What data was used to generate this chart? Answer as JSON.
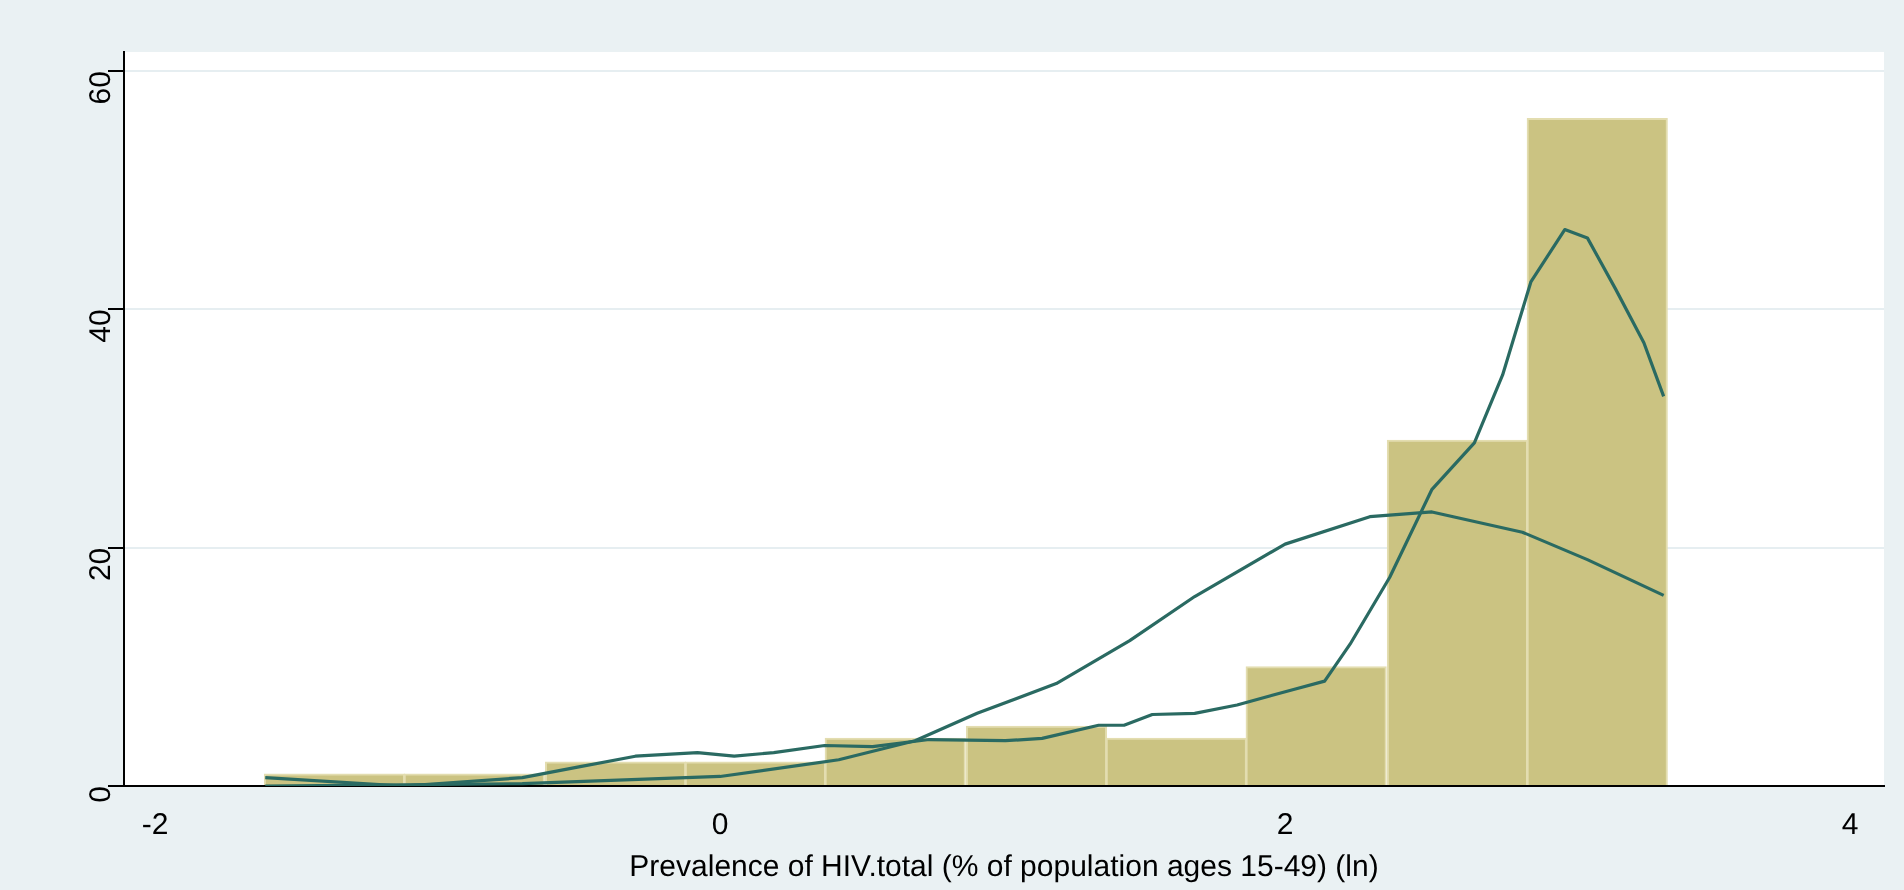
{
  "chart_data": {
    "type": "histogram",
    "xlabel": "Prevalence of HIV.total (% of population ages 15-49) (ln)",
    "bins": [
      -1.61,
      -1.12,
      -0.62,
      -0.12,
      0.37,
      0.87,
      1.37,
      1.86,
      2.36,
      2.86,
      3.35
    ],
    "values": [
      1,
      1,
      2,
      2,
      4,
      5,
      4,
      10,
      29,
      56
    ],
    "color": "#cbc382",
    "series": [
      {
        "type": "line",
        "color": "#2a6a62",
        "x": [
          -1.61,
          -1.12,
          -0.7,
          -0.5,
          -0.3,
          -0.08,
          0.05,
          0.19,
          0.37,
          0.54,
          0.74,
          1.01,
          1.14,
          1.34,
          1.43,
          1.53,
          1.68,
          1.83,
          2.03,
          2.14,
          2.23,
          2.37,
          2.52,
          2.67,
          2.77,
          2.87,
          2.99,
          3.07,
          3.17,
          3.27,
          3.34
        ],
        "values": [
          0.7,
          0,
          0.7,
          1.6,
          2.5,
          2.8,
          2.5,
          2.8,
          3.4,
          3.3,
          3.9,
          3.8,
          4.0,
          5.1,
          5.1,
          6.0,
          6.1,
          6.8,
          8.1,
          8.8,
          11.9,
          17.5,
          24.9,
          28.8,
          34.5,
          42.3,
          46.7,
          46.0,
          41.7,
          37.2,
          32.7
        ]
      },
      {
        "type": "line",
        "color": "#2a6a62",
        "x": [
          -1.61,
          -0.7,
          0,
          0.42,
          0.69,
          0.91,
          1.19,
          1.45,
          1.68,
          2.0,
          2.3,
          2.52,
          2.84,
          3.07,
          3.34
        ],
        "values": [
          0,
          0.2,
          0.8,
          2.2,
          3.8,
          6.1,
          8.6,
          12.2,
          15.9,
          20.3,
          22.6,
          23.0,
          21.3,
          19.0,
          16.0
        ]
      }
    ],
    "xlim": [
      -2.11,
      4.12
    ],
    "xticks": [
      -2,
      0,
      2,
      4
    ],
    "ylim": [
      0,
      61.6
    ],
    "yticks": [
      0,
      20,
      40,
      60
    ],
    "grid": "y",
    "legend": false
  }
}
